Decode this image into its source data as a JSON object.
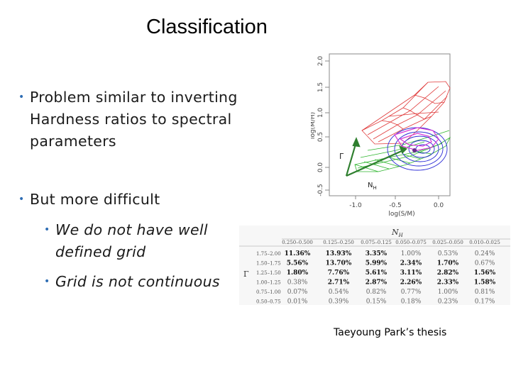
{
  "slide": {
    "title": "Classification",
    "bullets": [
      {
        "text": "Problem similar to inverting Hardness ratios to spectral parameters"
      },
      {
        "text": "But more difficult"
      }
    ],
    "sub_bullets": [
      {
        "text": "We do not have well defined grid"
      },
      {
        "text": "Grid is not continuous"
      }
    ],
    "caption": "Taeyoung Park’s thesis"
  },
  "plot": {
    "x_label": "log(S/M)",
    "y_label": "log(M/H)",
    "x_ticks": [
      "-1.0",
      "-0.5",
      "0.0"
    ],
    "y_ticks": [
      "-0.5",
      "0.0",
      "0.5",
      "1.0",
      "1.5",
      "2.0"
    ],
    "gamma_label": "Γ",
    "nh_label": "N",
    "nh_sub": "H",
    "colors": {
      "red": "#e03a3a",
      "green": "#2db52d",
      "blue": "#2a2ad6",
      "magenta": "#d63ad6",
      "arrow": "#2f7f2f"
    }
  },
  "table": {
    "nh_header": "N",
    "nh_sub": "H",
    "gamma_header": "Γ",
    "columns": [
      "0.250–0.500",
      "0.125–0.250",
      "0.075–0.125",
      "0.050–0.075",
      "0.025–0.050",
      "0.010–0.025"
    ],
    "rows": [
      {
        "label": "1.75–2.00",
        "cells": [
          "11.36%",
          "13.93%",
          "3.35%",
          "1.00%",
          "0.53%",
          "0.24%"
        ]
      },
      {
        "label": "1.50–1.75",
        "cells": [
          "5.56%",
          "13.70%",
          "5.99%",
          "2.34%",
          "1.70%",
          "0.67%"
        ]
      },
      {
        "label": "1.25–1.50",
        "cells": [
          "1.80%",
          "7.76%",
          "5.61%",
          "3.11%",
          "2.82%",
          "1.56%"
        ]
      },
      {
        "label": "1.00–1.25",
        "cells": [
          "0.38%",
          "2.71%",
          "2.87%",
          "2.26%",
          "2.33%",
          "1.58%"
        ]
      },
      {
        "label": "0.75–1.00",
        "cells": [
          "0.07%",
          "0.54%",
          "0.82%",
          "0.77%",
          "1.00%",
          "0.81%"
        ]
      },
      {
        "label": "0.50–0.75",
        "cells": [
          "0.01%",
          "0.39%",
          "0.15%",
          "0.18%",
          "0.23%",
          "0.17%"
        ]
      }
    ]
  }
}
